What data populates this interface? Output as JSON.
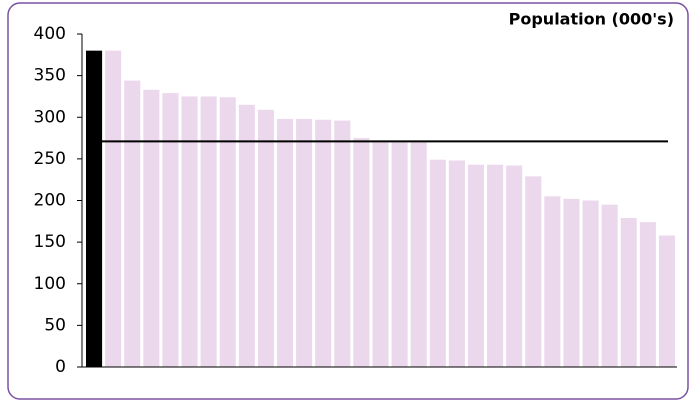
{
  "chart_data": {
    "type": "bar",
    "title": "Population (000's)",
    "values": [
      380,
      380,
      344,
      333,
      329,
      325,
      325,
      324,
      315,
      309,
      298,
      298,
      297,
      296,
      275,
      270,
      270,
      270,
      249,
      248,
      243,
      243,
      242,
      229,
      205,
      202,
      200,
      195,
      179,
      174,
      158
    ],
    "color": "#ecd8ec",
    "highlight_color": "#000000",
    "highlight_index": 0,
    "reference_line": 271,
    "reference_color": "#000000",
    "ylim": [
      0,
      400
    ],
    "yticks": [
      0,
      50,
      100,
      150,
      200,
      250,
      300,
      350,
      400
    ]
  }
}
